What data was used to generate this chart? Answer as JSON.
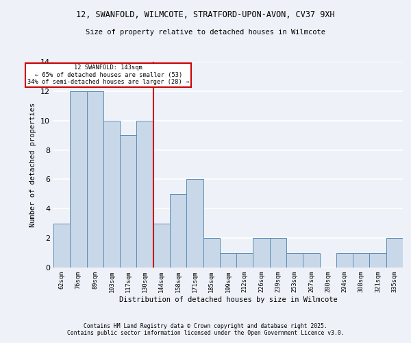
{
  "title_line1": "12, SWANFOLD, WILMCOTE, STRATFORD-UPON-AVON, CV37 9XH",
  "title_line2": "Size of property relative to detached houses in Wilmcote",
  "xlabel": "Distribution of detached houses by size in Wilmcote",
  "ylabel": "Number of detached properties",
  "categories": [
    "62sqm",
    "76sqm",
    "89sqm",
    "103sqm",
    "117sqm",
    "130sqm",
    "144sqm",
    "158sqm",
    "171sqm",
    "185sqm",
    "199sqm",
    "212sqm",
    "226sqm",
    "239sqm",
    "253sqm",
    "267sqm",
    "280sqm",
    "294sqm",
    "308sqm",
    "321sqm",
    "335sqm"
  ],
  "values": [
    3,
    12,
    12,
    10,
    9,
    10,
    3,
    5,
    6,
    2,
    1,
    1,
    2,
    2,
    1,
    1,
    0,
    1,
    1,
    1,
    2
  ],
  "bar_color": "#c8d8e8",
  "bar_edge_color": "#5b8db8",
  "vline_index": 6,
  "vline_color": "#cc0000",
  "annotation_box_text": "12 SWANFOLD: 143sqm\n← 65% of detached houses are smaller (53)\n34% of semi-detached houses are larger (28) →",
  "annotation_box_color": "#cc0000",
  "annotation_box_facecolor": "white",
  "ylim": [
    0,
    14
  ],
  "yticks": [
    0,
    2,
    4,
    6,
    8,
    10,
    12,
    14
  ],
  "background_color": "#eef2f8",
  "grid_color": "white",
  "footer": "Contains HM Land Registry data © Crown copyright and database right 2025.\nContains public sector information licensed under the Open Government Licence v3.0."
}
